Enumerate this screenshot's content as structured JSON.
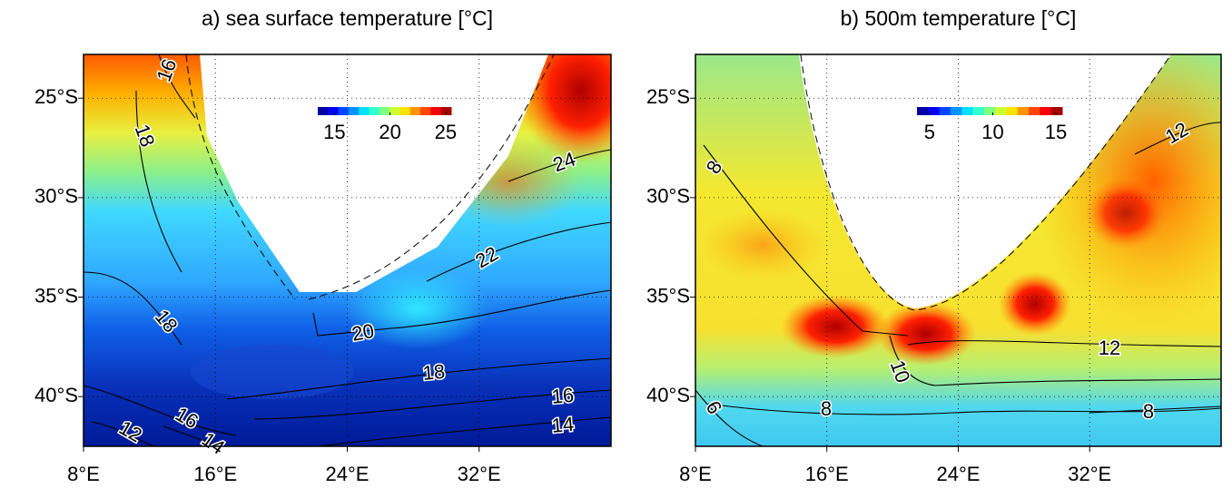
{
  "chart_data": [
    {
      "type": "map",
      "title": "a) sea surface temperature [°C]",
      "colormap": "jet",
      "grid": true,
      "xlim": [
        8,
        40
      ],
      "ylim": [
        -42.5,
        -22.8
      ],
      "xticks": [
        {
          "value": 8,
          "label": "8°E"
        },
        {
          "value": 16,
          "label": "16°E"
        },
        {
          "value": 24,
          "label": "24°E"
        },
        {
          "value": 32,
          "label": "32°E"
        }
      ],
      "yticks": [
        {
          "value": -25,
          "label": "25°S"
        },
        {
          "value": -30,
          "label": "30°S"
        },
        {
          "value": -35,
          "label": "35°S"
        },
        {
          "value": -40,
          "label": "40°S"
        }
      ],
      "colorbar": {
        "lim": [
          13.5,
          25.5
        ],
        "ticks": [
          15,
          20,
          25
        ]
      },
      "contour_labels": [
        16,
        18,
        24,
        22,
        18,
        20,
        18,
        16,
        16,
        14,
        14,
        12
      ]
    },
    {
      "type": "map",
      "title": "b) 500m temperature [°C]",
      "colormap": "jet",
      "grid": true,
      "xlim": [
        8,
        40
      ],
      "ylim": [
        -42.5,
        -22.8
      ],
      "xticks": [
        {
          "value": 8,
          "label": "8°E"
        },
        {
          "value": 16,
          "label": "16°E"
        },
        {
          "value": 24,
          "label": "24°E"
        },
        {
          "value": 32,
          "label": "32°E"
        }
      ],
      "yticks": [
        {
          "value": -25,
          "label": "25°S"
        },
        {
          "value": -30,
          "label": "30°S"
        },
        {
          "value": -35,
          "label": "35°S"
        },
        {
          "value": -40,
          "label": "40°S"
        }
      ],
      "colorbar": {
        "lim": [
          4,
          15.5
        ],
        "ticks": [
          5,
          10,
          15
        ]
      },
      "contour_labels": [
        8,
        12,
        12,
        10,
        8,
        8,
        6
      ]
    }
  ]
}
